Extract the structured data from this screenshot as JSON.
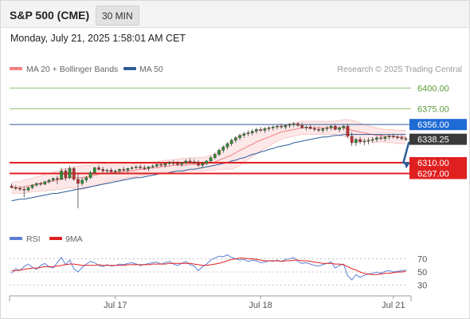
{
  "header": {
    "title": "S&P 500 (CME)",
    "period": "30 MIN",
    "datetime": "Monday, July 21, 2025 1:58:01 AM CET"
  },
  "legend": {
    "bollinger": "MA 20 + Bollinger Bands",
    "ma50": "MA 50",
    "credit": "Research © 2025 Trading Central"
  },
  "colors": {
    "bollinger": "#f08080",
    "ma50": "#2e5c9a",
    "resistance": "#8cc06e",
    "support": "#e02020",
    "pivot": "#1f6bd6",
    "price_box": "#3a3a3a",
    "up_candle": "#2f8f2f",
    "down_candle": "#c03030",
    "rsi": "#5b7fd6",
    "rsi_ma": "#e02020"
  },
  "levels": [
    {
      "value": 6400.0,
      "label": "6400.00",
      "kind": "resistance"
    },
    {
      "value": 6375.0,
      "label": "6375.00",
      "kind": "resistance"
    },
    {
      "value": 6356.0,
      "label": "6356.00",
      "kind": "pivot"
    },
    {
      "value": 6338.25,
      "label": "6338.25",
      "kind": "last"
    },
    {
      "value": 6310.0,
      "label": "6310.00",
      "kind": "support"
    },
    {
      "value": 6297.0,
      "label": "6297.00",
      "kind": "support"
    }
  ],
  "rsi_legend": {
    "rsi": "RSI",
    "ma": "9MA"
  },
  "rsi_levels": [
    {
      "value": 70,
      "label": "70"
    },
    {
      "value": 50,
      "label": "50"
    },
    {
      "value": 30,
      "label": "30"
    }
  ],
  "x_labels": [
    {
      "index": 25,
      "label": "Jul 17"
    },
    {
      "index": 60,
      "label": "Jul 18"
    },
    {
      "index": 92,
      "label": "Jul 21"
    }
  ],
  "chart_data": {
    "type": "candlestick",
    "y_range": [
      6235,
      6410
    ],
    "rsi_range": [
      20,
      85
    ],
    "candles": [
      [
        6282,
        6285,
        6279,
        6280
      ],
      [
        6280,
        6283,
        6277,
        6279
      ],
      [
        6279,
        6282,
        6276,
        6278
      ],
      [
        6278,
        6281,
        6268,
        6277
      ],
      [
        6277,
        6281,
        6275,
        6280
      ],
      [
        6280,
        6284,
        6278,
        6283
      ],
      [
        6283,
        6286,
        6281,
        6285
      ],
      [
        6285,
        6287,
        6282,
        6284
      ],
      [
        6284,
        6288,
        6283,
        6287
      ],
      [
        6287,
        6290,
        6285,
        6289
      ],
      [
        6289,
        6292,
        6287,
        6291
      ],
      [
        6291,
        6294,
        6284,
        6290
      ],
      [
        6290,
        6304,
        6289,
        6300
      ],
      [
        6300,
        6303,
        6288,
        6292
      ],
      [
        6292,
        6306,
        6290,
        6303
      ],
      [
        6303,
        6305,
        6288,
        6290
      ],
      [
        6290,
        6296,
        6255,
        6285
      ],
      [
        6285,
        6292,
        6282,
        6289
      ],
      [
        6289,
        6294,
        6286,
        6292
      ],
      [
        6292,
        6300,
        6290,
        6298
      ],
      [
        6298,
        6305,
        6296,
        6304
      ],
      [
        6304,
        6307,
        6300,
        6302
      ],
      [
        6302,
        6305,
        6298,
        6300
      ],
      [
        6300,
        6303,
        6297,
        6301
      ],
      [
        6301,
        6304,
        6298,
        6299
      ],
      [
        6299,
        6302,
        6296,
        6300
      ],
      [
        6300,
        6303,
        6297,
        6302
      ],
      [
        6302,
        6305,
        6299,
        6301
      ],
      [
        6301,
        6304,
        6298,
        6303
      ],
      [
        6303,
        6306,
        6301,
        6304
      ],
      [
        6304,
        6307,
        6302,
        6305
      ],
      [
        6305,
        6308,
        6302,
        6304
      ],
      [
        6304,
        6307,
        6301,
        6303
      ],
      [
        6303,
        6306,
        6300,
        6305
      ],
      [
        6305,
        6308,
        6303,
        6306
      ],
      [
        6306,
        6309,
        6304,
        6308
      ],
      [
        6308,
        6310,
        6305,
        6307
      ],
      [
        6307,
        6310,
        6304,
        6309
      ],
      [
        6309,
        6312,
        6307,
        6310
      ],
      [
        6310,
        6313,
        6307,
        6309
      ],
      [
        6309,
        6312,
        6306,
        6308
      ],
      [
        6308,
        6311,
        6305,
        6310
      ],
      [
        6310,
        6314,
        6308,
        6312
      ],
      [
        6312,
        6315,
        6309,
        6311
      ],
      [
        6311,
        6314,
        6308,
        6310
      ],
      [
        6310,
        6313,
        6305,
        6307
      ],
      [
        6307,
        6311,
        6304,
        6309
      ],
      [
        6309,
        6313,
        6307,
        6312
      ],
      [
        6312,
        6318,
        6310,
        6316
      ],
      [
        6316,
        6322,
        6314,
        6320
      ],
      [
        6320,
        6327,
        6318,
        6325
      ],
      [
        6325,
        6331,
        6322,
        6329
      ],
      [
        6329,
        6335,
        6326,
        6333
      ],
      [
        6333,
        6339,
        6330,
        6337
      ],
      [
        6337,
        6342,
        6334,
        6340
      ],
      [
        6340,
        6345,
        6337,
        6343
      ],
      [
        6343,
        6347,
        6340,
        6345
      ],
      [
        6345,
        6349,
        6342,
        6346
      ],
      [
        6346,
        6350,
        6343,
        6348
      ],
      [
        6348,
        6352,
        6345,
        6350
      ],
      [
        6350,
        6353,
        6347,
        6349
      ],
      [
        6349,
        6353,
        6346,
        6351
      ],
      [
        6351,
        6354,
        6348,
        6352
      ],
      [
        6352,
        6355,
        6349,
        6353
      ],
      [
        6353,
        6356,
        6350,
        6354
      ],
      [
        6354,
        6357,
        6351,
        6353
      ],
      [
        6353,
        6356,
        6350,
        6355
      ],
      [
        6355,
        6358,
        6352,
        6356
      ],
      [
        6356,
        6359,
        6353,
        6357
      ],
      [
        6357,
        6359,
        6353,
        6355
      ],
      [
        6355,
        6358,
        6351,
        6352
      ],
      [
        6352,
        6355,
        6349,
        6353
      ],
      [
        6353,
        6356,
        6350,
        6351
      ],
      [
        6351,
        6354,
        6348,
        6350
      ],
      [
        6350,
        6353,
        6347,
        6349
      ],
      [
        6349,
        6352,
        6346,
        6351
      ],
      [
        6351,
        6354,
        6348,
        6352
      ],
      [
        6352,
        6356,
        6349,
        6354
      ],
      [
        6354,
        6357,
        6349,
        6350
      ],
      [
        6350,
        6354,
        6347,
        6352
      ],
      [
        6352,
        6356,
        6349,
        6354
      ],
      [
        6354,
        6357,
        6340,
        6342
      ],
      [
        6342,
        6347,
        6330,
        6334
      ],
      [
        6334,
        6340,
        6330,
        6338
      ],
      [
        6338,
        6341,
        6333,
        6335
      ],
      [
        6335,
        6339,
        6331,
        6336
      ],
      [
        6336,
        6340,
        6332,
        6337
      ],
      [
        6337,
        6341,
        6334,
        6338
      ],
      [
        6338,
        6342,
        6335,
        6340
      ],
      [
        6340,
        6343,
        6337,
        6339
      ],
      [
        6339,
        6342,
        6336,
        6341
      ],
      [
        6341,
        6344,
        6338,
        6342
      ],
      [
        6342,
        6345,
        6339,
        6341
      ],
      [
        6341,
        6343,
        6338,
        6340
      ],
      [
        6340,
        6343,
        6337,
        6339
      ],
      [
        6339,
        6341,
        6336,
        6338
      ]
    ],
    "ma20": [
      6280,
      6280,
      6280,
      6281,
      6282,
      6283,
      6284,
      6285,
      6286,
      6287,
      6288,
      6289,
      6290,
      6291,
      6292,
      6292,
      6292,
      6292,
      6293,
      6294,
      6295,
      6296,
      6297,
      6297,
      6298,
      6298,
      6299,
      6299,
      6300,
      6300,
      6301,
      6302,
      6302,
      6303,
      6304,
      6304,
      6305,
      6306,
      6306,
      6307,
      6307,
      6307,
      6307,
      6308,
      6308,
      6308,
      6308,
      6309,
      6310,
      6311,
      6313,
      6315,
      6317,
      6319,
      6322,
      6325,
      6327,
      6330,
      6332,
      6335,
      6337,
      6339,
      6341,
      6343,
      6345,
      6347,
      6348,
      6349,
      6350,
      6351,
      6352,
      6352,
      6352,
      6352,
      6352,
      6352,
      6352,
      6352,
      6352,
      6352,
      6352,
      6351,
      6349,
      6348,
      6347,
      6346,
      6345,
      6344,
      6343,
      6343,
      6342,
      6342,
      6342,
      6341,
      6341,
      6341
    ],
    "ma50": [
      6264,
      6265,
      6266,
      6266,
      6267,
      6268,
      6269,
      6270,
      6271,
      6272,
      6273,
      6273,
      6274,
      6275,
      6276,
      6277,
      6278,
      6279,
      6280,
      6281,
      6282,
      6283,
      6284,
      6285,
      6286,
      6287,
      6288,
      6289,
      6290,
      6291,
      6292,
      6292,
      6293,
      6294,
      6295,
      6296,
      6297,
      6297,
      6298,
      6299,
      6300,
      6300,
      6301,
      6302,
      6302,
      6303,
      6304,
      6305,
      6306,
      6307,
      6308,
      6309,
      6310,
      6312,
      6313,
      6315,
      6316,
      6318,
      6320,
      6321,
      6323,
      6324,
      6326,
      6327,
      6329,
      6330,
      6331,
      6332,
      6334,
      6335,
      6336,
      6337,
      6338,
      6339,
      6340,
      6341,
      6341,
      6342,
      6343,
      6343,
      6344,
      6344,
      6344,
      6344,
      6344,
      6344,
      6344,
      6344,
      6344,
      6344,
      6344,
      6344,
      6344,
      6344,
      6344,
      6344
    ],
    "band_width": [
      7,
      7,
      7,
      8,
      8,
      8,
      9,
      9,
      10,
      10,
      11,
      11,
      12,
      12,
      12,
      13,
      14,
      14,
      14,
      13,
      13,
      12,
      12,
      11,
      10,
      10,
      9,
      9,
      8,
      8,
      8,
      8,
      7,
      7,
      7,
      7,
      7,
      7,
      7,
      7,
      7,
      8,
      8,
      8,
      8,
      8,
      8,
      8,
      9,
      10,
      11,
      13,
      15,
      17,
      18,
      18,
      17,
      16,
      15,
      14,
      13,
      12,
      11,
      10,
      9,
      9,
      8,
      8,
      8,
      8,
      8,
      8,
      8,
      8,
      8,
      8,
      8,
      8,
      8,
      9,
      10,
      11,
      12,
      12,
      11,
      10,
      10,
      9,
      9,
      8,
      8,
      8,
      8,
      8,
      8,
      8
    ],
    "rsi": [
      48,
      55,
      52,
      58,
      62,
      57,
      54,
      60,
      63,
      58,
      56,
      64,
      72,
      61,
      68,
      55,
      50,
      57,
      62,
      66,
      64,
      60,
      58,
      61,
      59,
      60,
      62,
      61,
      63,
      64,
      62,
      60,
      61,
      63,
      64,
      65,
      62,
      64,
      66,
      62,
      60,
      63,
      66,
      61,
      59,
      52,
      58,
      62,
      68,
      71,
      74,
      73,
      76,
      72,
      70,
      68,
      69,
      66,
      68,
      67,
      64,
      65,
      67,
      66,
      68,
      66,
      69,
      70,
      72,
      66,
      63,
      64,
      62,
      60,
      59,
      61,
      63,
      65,
      56,
      60,
      62,
      44,
      38,
      46,
      42,
      45,
      47,
      48,
      50,
      48,
      51,
      52,
      50,
      51,
      52,
      53
    ],
    "rsi_ma": [
      52,
      52,
      53,
      54,
      55,
      56,
      56,
      57,
      58,
      58,
      58,
      59,
      60,
      61,
      62,
      62,
      61,
      60,
      60,
      60,
      60,
      61,
      60,
      60,
      60,
      60,
      60,
      60,
      61,
      61,
      61,
      61,
      61,
      61,
      62,
      62,
      62,
      62,
      63,
      63,
      63,
      63,
      63,
      63,
      62,
      61,
      60,
      60,
      61,
      62,
      63,
      65,
      67,
      69,
      70,
      71,
      71,
      70,
      70,
      69,
      68,
      67,
      67,
      67,
      67,
      66,
      67,
      67,
      68,
      68,
      67,
      67,
      66,
      65,
      64,
      63,
      63,
      63,
      62,
      62,
      61,
      58,
      55,
      53,
      50,
      48,
      47,
      46,
      46,
      47,
      48,
      48,
      49,
      50,
      50,
      51
    ]
  }
}
